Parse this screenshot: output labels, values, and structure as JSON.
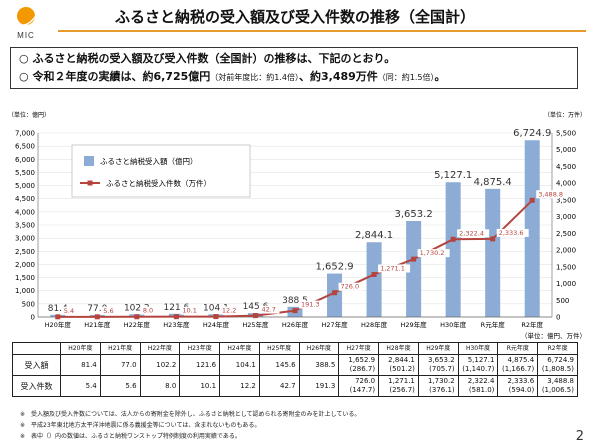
{
  "logo": {
    "text": "MIC"
  },
  "title": "ふるさと納税の受入額及び受入件数の推移（全国計）",
  "bullets": [
    {
      "mark": "○",
      "text": "ふるさと納税の受入額及び受入件数（全国計）の推移は、下記のとおり。"
    },
    {
      "mark": "○",
      "text": "令和２年度の実績は、約6,725億円",
      "note1": "（対前年度比：約1.4倍）",
      "mid": "、約3,489万件",
      "note2": "（同：約1.5倍）",
      "end": "。"
    }
  ],
  "colors": {
    "bar": "#8cacd6",
    "line": "#b5443f",
    "accent": "#e89b2d"
  },
  "chart_data": {
    "type": "bar",
    "categories": [
      "H20年度",
      "H21年度",
      "H22年度",
      "H23年度",
      "H24年度",
      "H25年度",
      "H26年度",
      "H27年度",
      "H28年度",
      "H29年度",
      "H30年度",
      "R元年度",
      "R2年度"
    ],
    "y_unit_left": "（単位：億円）",
    "y_unit_right": "（単位：万件）",
    "ylim_left": [
      0,
      7000
    ],
    "ylim_right": [
      0,
      5500
    ],
    "yticks_left": [
      "0",
      "500",
      "1,000",
      "1,500",
      "2,000",
      "2,500",
      "3,000",
      "3,500",
      "4,000",
      "4,500",
      "5,000",
      "5,500",
      "6,000",
      "6,500",
      "7,000"
    ],
    "yticks_right": [
      "0",
      "500",
      "1,000",
      "1,500",
      "2,000",
      "2,500",
      "3,000",
      "3,500",
      "4,000",
      "4,500",
      "5,000",
      "5,500"
    ],
    "legend": "top-left",
    "series": [
      {
        "name": "ふるさと納税受入額（億円）",
        "type": "bar",
        "axis": "left",
        "values": [
          81.4,
          77.0,
          102.2,
          121.6,
          104.1,
          145.6,
          388.5,
          1652.9,
          2844.1,
          3653.2,
          5127.1,
          4875.4,
          6724.9
        ],
        "labels": [
          "81.4",
          "77.0",
          "102.2",
          "121.6",
          "104.1",
          "145.6",
          "388.5",
          "1,652.9",
          "2,844.1",
          "3,653.2",
          "5,127.1",
          "4,875.4",
          "6,724.9"
        ]
      },
      {
        "name": "ふるさと納税受入件数（万件）",
        "type": "line",
        "axis": "right",
        "values": [
          5.4,
          5.6,
          8.0,
          10.1,
          12.2,
          42.7,
          191.3,
          726.0,
          1271.1,
          1730.2,
          2322.4,
          2333.6,
          3488.8
        ],
        "labels": [
          "5.4",
          "5.6",
          "8.0",
          "10.1",
          "12.2",
          "42.7",
          "191.3",
          "726.0",
          "1,271.1",
          "1,730.2",
          "2,322.4",
          "2,333.6",
          "3,488.8"
        ]
      }
    ]
  },
  "table": {
    "unit": "（単位：億円、万件）",
    "header": [
      "",
      "H20年度",
      "H21年度",
      "H22年度",
      "H23年度",
      "H24年度",
      "H25年度",
      "H26年度",
      "H27年度",
      "H28年度",
      "H29年度",
      "H30年度",
      "R元年度",
      "R2年度"
    ],
    "rows": [
      {
        "label": "受入額",
        "cells": [
          "81.4",
          "77.0",
          "102.2",
          "121.6",
          "104.1",
          "145.6",
          "388.5",
          "1,652.9",
          "2,844.1",
          "3,653.2",
          "5,127.1",
          "4,875.4",
          "6,724.9"
        ],
        "sub": [
          "",
          "",
          "",
          "",
          "",
          "",
          "",
          "(286.7)",
          "(501.2)",
          "(705.7)",
          "(1,140.7)",
          "(1,166.7)",
          "(1,808.5)"
        ]
      },
      {
        "label": "受入件数",
        "cells": [
          "5.4",
          "5.6",
          "8.0",
          "10.1",
          "12.2",
          "42.7",
          "191.3",
          "726.0",
          "1,271.1",
          "1,730.2",
          "2,322.4",
          "2,333.6",
          "3,488.8"
        ],
        "sub": [
          "",
          "",
          "",
          "",
          "",
          "",
          "",
          "(147.7)",
          "(256.7)",
          "(376.1)",
          "(581.0)",
          "(594.0)",
          "(1,006.5)"
        ]
      }
    ]
  },
  "notes": [
    "※　受入額及び受入件数については、法人からの寄附金を除外し、ふるさと納税として認められる寄附金のみを計上している。",
    "※　平成23年東北地方太平洋沖地震に係る義援金等については、含まれないものもある。",
    "※　表中（）内の数値は、ふるさと納税ワンストップ特例制度の利用実績である。"
  ],
  "page_number": "2"
}
